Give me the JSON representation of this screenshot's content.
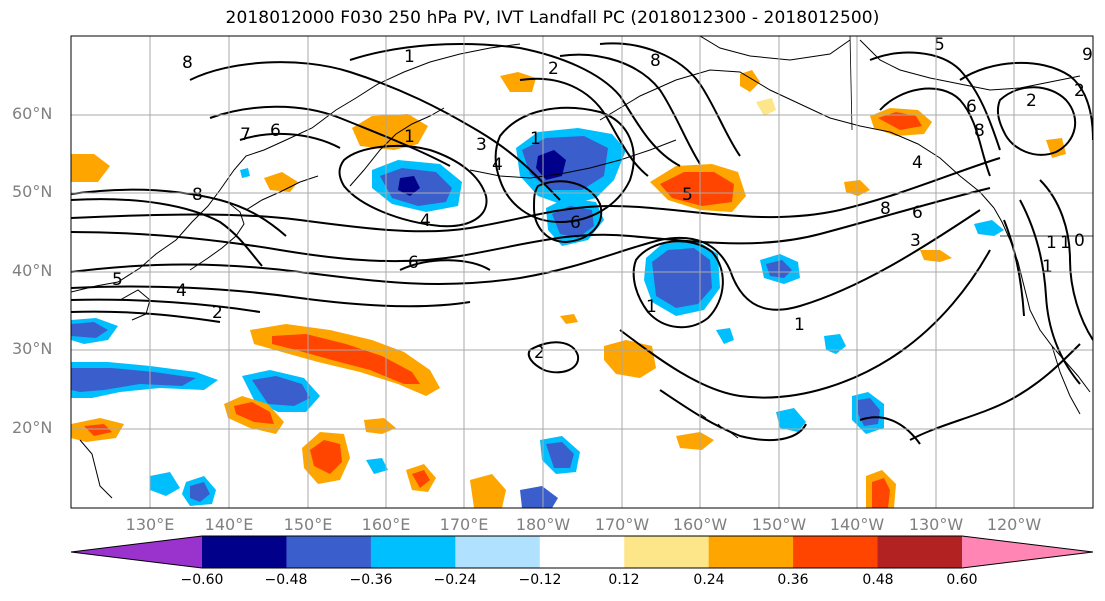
{
  "title": "2018012000 F030 250 hPa PV, IVT Landfall PC (2018012300 - 2018012500)",
  "lat_labels": [
    "60°N",
    "50°N",
    "40°N",
    "30°N",
    "20°N"
  ],
  "lon_labels": [
    "130°E",
    "140°E",
    "150°E",
    "160°E",
    "170°E",
    "180°W",
    "170°W",
    "160°W",
    "150°W",
    "140°W",
    "130°W",
    "120°W"
  ],
  "colorbar": {
    "ticks": [
      "−0.60",
      "−0.48",
      "−0.36",
      "−0.24",
      "−0.12",
      "0.12",
      "0.24",
      "0.36",
      "0.48",
      "0.60"
    ],
    "colors": [
      "#9a32cd",
      "#00008b",
      "#3a5fcd",
      "#00bfff",
      "#b0e2ff",
      "#ffffff",
      "#fde68a",
      "#ffa500",
      "#ff4500",
      "#b22222",
      "#ff86b4"
    ]
  },
  "contour_labels": [
    "1",
    "2",
    "8",
    "8",
    "6",
    "7",
    "8",
    "1",
    "3",
    "4",
    "1",
    "4",
    "6",
    "6",
    "5",
    "4",
    "2",
    "2",
    "1",
    "1",
    "8",
    "6",
    "4",
    "3",
    "5",
    "6",
    "0",
    "5",
    "2",
    "1",
    "2",
    "1",
    "8",
    "1",
    "9"
  ],
  "colors": {
    "grid": "#a9a9a9",
    "contour": "#000000",
    "axis_text": "#808080"
  }
}
